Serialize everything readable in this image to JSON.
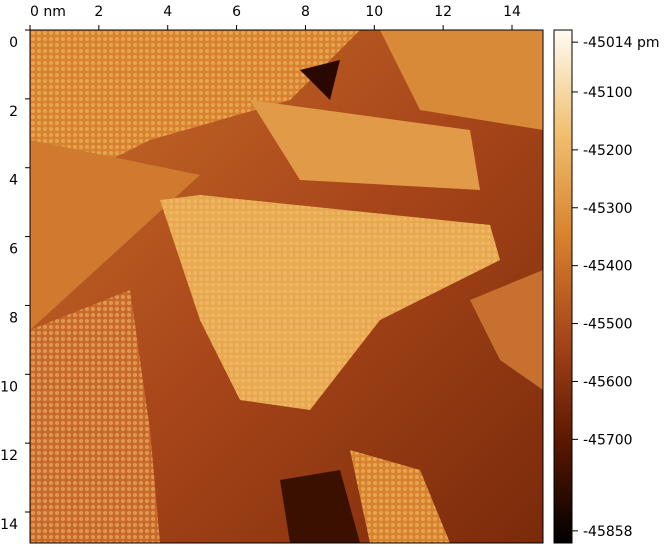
{
  "chart_data": {
    "type": "image",
    "x_ticks_unit_note_absent": null,
    "xlim": [
      0,
      14.9
    ],
    "ylim": [
      0,
      14.9
    ],
    "xticks": [
      {
        "value": 0,
        "label": "0 nm"
      },
      2,
      4,
      6,
      8,
      10,
      12,
      14
    ],
    "yticks": [
      0,
      2,
      4,
      6,
      8,
      10,
      12,
      14
    ],
    "clim": [
      -45879,
      -44993
    ],
    "cticks": [
      {
        "value": -45014,
        "label": "-45014 pm"
      },
      -45100,
      -45200,
      -45300,
      -45400,
      -45500,
      -45600,
      -45700,
      {
        "value": -45858,
        "label": "-45858"
      }
    ],
    "colormap": [
      "#000000",
      "#5c1800",
      "#a8461a",
      "#d8822e",
      "#f0c070",
      "#fffbf2"
    ]
  }
}
